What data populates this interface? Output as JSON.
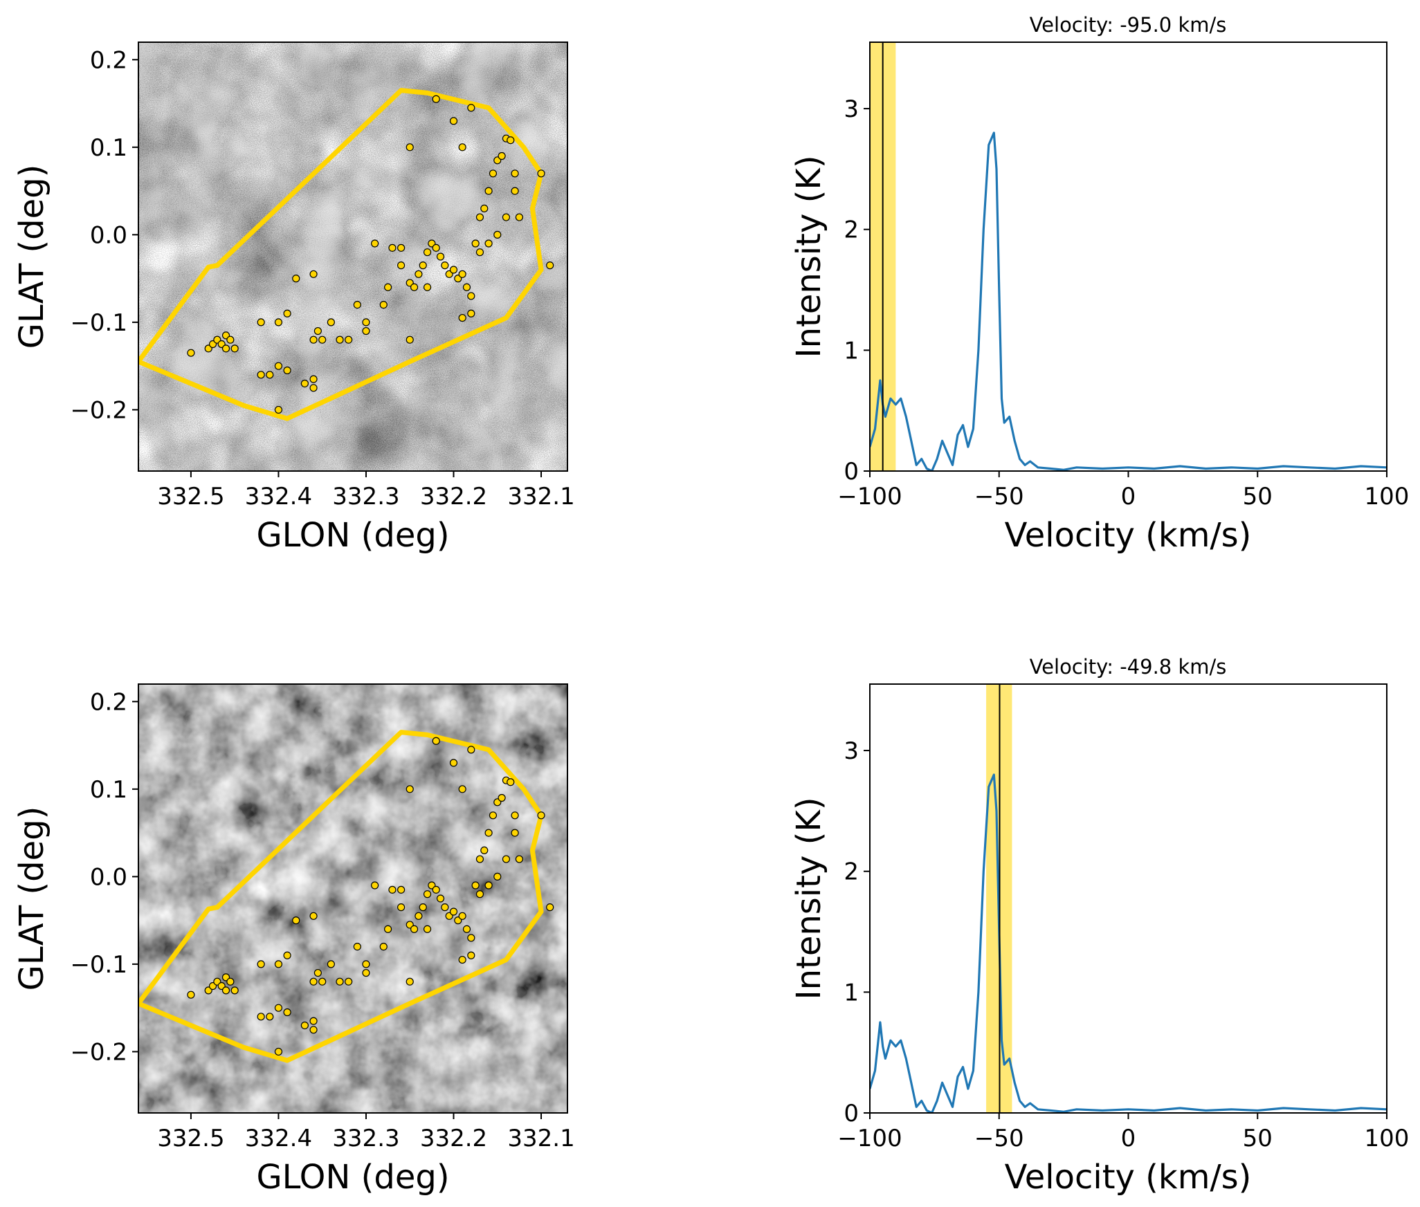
{
  "chart_data": [
    {
      "type": "scatter",
      "panel": "map-top",
      "xlabel": "GLON (deg)",
      "ylabel": "GLAT (deg)",
      "xlim": [
        332.56,
        332.07
      ],
      "ylim": [
        -0.27,
        0.22
      ],
      "xticks": [
        332.5,
        332.4,
        332.3,
        332.2,
        332.1
      ],
      "xtick_labels": [
        "332.5",
        "332.4",
        "332.3",
        "332.2",
        "332.1"
      ],
      "yticks": [
        0.2,
        0.1,
        0.0,
        -0.1,
        -0.2
      ],
      "ytick_labels": [
        "0.2",
        "0.1",
        "0.0",
        "−0.1",
        "−0.2"
      ],
      "background": "grayscale intensity map (noisy, channel at -95.0 km/s)",
      "polygon": [
        [
          332.56,
          -0.145
        ],
        [
          332.48,
          -0.037
        ],
        [
          332.47,
          -0.035
        ],
        [
          332.26,
          0.165
        ],
        [
          332.23,
          0.162
        ],
        [
          332.16,
          0.145
        ],
        [
          332.12,
          0.1
        ],
        [
          332.1,
          0.07
        ],
        [
          332.11,
          0.03
        ],
        [
          332.1,
          -0.04
        ],
        [
          332.14,
          -0.095
        ],
        [
          332.25,
          -0.145
        ],
        [
          332.39,
          -0.21
        ],
        [
          332.44,
          -0.195
        ]
      ],
      "points": [
        [
          332.5,
          -0.135
        ],
        [
          332.48,
          -0.13
        ],
        [
          332.475,
          -0.125
        ],
        [
          332.47,
          -0.12
        ],
        [
          332.465,
          -0.125
        ],
        [
          332.46,
          -0.115
        ],
        [
          332.455,
          -0.12
        ],
        [
          332.45,
          -0.13
        ],
        [
          332.46,
          -0.13
        ],
        [
          332.42,
          -0.1
        ],
        [
          332.42,
          -0.16
        ],
        [
          332.41,
          -0.16
        ],
        [
          332.4,
          -0.2
        ],
        [
          332.4,
          -0.15
        ],
        [
          332.39,
          -0.155
        ],
        [
          332.4,
          -0.1
        ],
        [
          332.39,
          -0.09
        ],
        [
          332.38,
          -0.05
        ],
        [
          332.37,
          -0.17
        ],
        [
          332.36,
          -0.165
        ],
        [
          332.36,
          -0.175
        ],
        [
          332.36,
          -0.12
        ],
        [
          332.355,
          -0.11
        ],
        [
          332.35,
          -0.12
        ],
        [
          332.36,
          -0.045
        ],
        [
          332.34,
          -0.1
        ],
        [
          332.33,
          -0.12
        ],
        [
          332.32,
          -0.12
        ],
        [
          332.31,
          -0.08
        ],
        [
          332.3,
          -0.1
        ],
        [
          332.3,
          -0.11
        ],
        [
          332.29,
          -0.01
        ],
        [
          332.28,
          -0.08
        ],
        [
          332.275,
          -0.06
        ],
        [
          332.27,
          -0.015
        ],
        [
          332.26,
          -0.015
        ],
        [
          332.26,
          -0.035
        ],
        [
          332.25,
          -0.055
        ],
        [
          332.245,
          -0.06
        ],
        [
          332.24,
          -0.045
        ],
        [
          332.235,
          -0.035
        ],
        [
          332.23,
          -0.02
        ],
        [
          332.225,
          -0.01
        ],
        [
          332.22,
          -0.015
        ],
        [
          332.215,
          -0.025
        ],
        [
          332.21,
          -0.035
        ],
        [
          332.205,
          -0.045
        ],
        [
          332.2,
          -0.04
        ],
        [
          332.195,
          -0.05
        ],
        [
          332.19,
          -0.045
        ],
        [
          332.185,
          -0.06
        ],
        [
          332.18,
          -0.09
        ],
        [
          332.19,
          -0.095
        ],
        [
          332.175,
          -0.01
        ],
        [
          332.17,
          0.02
        ],
        [
          332.165,
          0.03
        ],
        [
          332.16,
          0.05
        ],
        [
          332.155,
          0.07
        ],
        [
          332.15,
          0.085
        ],
        [
          332.145,
          0.09
        ],
        [
          332.14,
          0.11
        ],
        [
          332.135,
          0.108
        ],
        [
          332.13,
          0.07
        ],
        [
          332.13,
          0.05
        ],
        [
          332.125,
          0.02
        ],
        [
          332.14,
          0.02
        ],
        [
          332.15,
          0.0
        ],
        [
          332.16,
          -0.01
        ],
        [
          332.17,
          -0.02
        ],
        [
          332.18,
          -0.07
        ],
        [
          332.2,
          0.13
        ],
        [
          332.22,
          0.155
        ],
        [
          332.25,
          0.1
        ],
        [
          332.19,
          0.1
        ],
        [
          332.18,
          0.145
        ],
        [
          332.1,
          0.07
        ],
        [
          332.09,
          -0.035
        ],
        [
          332.25,
          -0.12
        ],
        [
          332.23,
          -0.06
        ]
      ],
      "point_color": "#ffd500",
      "polygon_color": "#ffd500"
    },
    {
      "type": "line",
      "panel": "spectrum-top",
      "title": "Velocity: -95.0 km/s",
      "xlabel": "Velocity (km/s)",
      "ylabel": "Intensity (K)",
      "xlim": [
        -100,
        100
      ],
      "ylim": [
        0,
        3.55
      ],
      "xticks": [
        -100,
        -50,
        0,
        50,
        100
      ],
      "xtick_labels": [
        "−100",
        "−50",
        "0",
        "50",
        "100"
      ],
      "yticks": [
        0,
        1,
        2,
        3
      ],
      "ytick_labels": [
        "0",
        "1",
        "2",
        "3"
      ],
      "marker_velocity": -95.0,
      "highlight_range": [
        -100,
        -90
      ],
      "line_color": "#1f77b4",
      "highlight_color": "#ffe566",
      "x": [
        -100,
        -98,
        -96,
        -95,
        -94,
        -92,
        -90,
        -88,
        -86,
        -84,
        -82,
        -80,
        -78,
        -76,
        -74,
        -72,
        -70,
        -68,
        -66,
        -64,
        -62,
        -60,
        -58,
        -56,
        -54,
        -52,
        -51,
        -50,
        -49,
        -48,
        -46,
        -44,
        -42,
        -40,
        -38,
        -35,
        -30,
        -25,
        -20,
        -10,
        0,
        10,
        20,
        30,
        40,
        50,
        60,
        70,
        80,
        90,
        100
      ],
      "y": [
        0.2,
        0.35,
        0.75,
        0.55,
        0.45,
        0.6,
        0.55,
        0.6,
        0.45,
        0.25,
        0.05,
        0.1,
        0.02,
        0.0,
        0.1,
        0.25,
        0.15,
        0.05,
        0.3,
        0.38,
        0.2,
        0.35,
        1.0,
        2.0,
        2.7,
        2.8,
        2.5,
        1.5,
        0.6,
        0.4,
        0.45,
        0.25,
        0.1,
        0.05,
        0.08,
        0.03,
        0.02,
        0.01,
        0.03,
        0.02,
        0.03,
        0.02,
        0.04,
        0.02,
        0.03,
        0.02,
        0.04,
        0.03,
        0.02,
        0.04,
        0.03
      ]
    },
    {
      "type": "scatter",
      "panel": "map-bottom",
      "xlabel": "GLON (deg)",
      "ylabel": "GLAT (deg)",
      "xlim": [
        332.56,
        332.07
      ],
      "ylim": [
        -0.27,
        0.22
      ],
      "xticks": [
        332.5,
        332.4,
        332.3,
        332.2,
        332.1
      ],
      "xtick_labels": [
        "332.5",
        "332.4",
        "332.3",
        "332.2",
        "332.1"
      ],
      "yticks": [
        0.2,
        0.1,
        0.0,
        -0.1,
        -0.2
      ],
      "ytick_labels": [
        "0.2",
        "0.1",
        "0.0",
        "−0.1",
        "−0.2"
      ],
      "background": "grayscale intensity map (filamentary emission, channel at -49.8 km/s)",
      "polygon": "same as top",
      "points": "same as top"
    },
    {
      "type": "line",
      "panel": "spectrum-bottom",
      "title": "Velocity: -49.8 km/s",
      "xlabel": "Velocity (km/s)",
      "ylabel": "Intensity (K)",
      "xlim": [
        -100,
        100
      ],
      "ylim": [
        0,
        3.55
      ],
      "xticks": [
        -100,
        -50,
        0,
        50,
        100
      ],
      "xtick_labels": [
        "−100",
        "−50",
        "0",
        "50",
        "100"
      ],
      "yticks": [
        0,
        1,
        2,
        3
      ],
      "ytick_labels": [
        "0",
        "1",
        "2",
        "3"
      ],
      "marker_velocity": -49.8,
      "highlight_range": [
        -55,
        -45
      ],
      "x": "same as top",
      "y": "same as top"
    }
  ]
}
